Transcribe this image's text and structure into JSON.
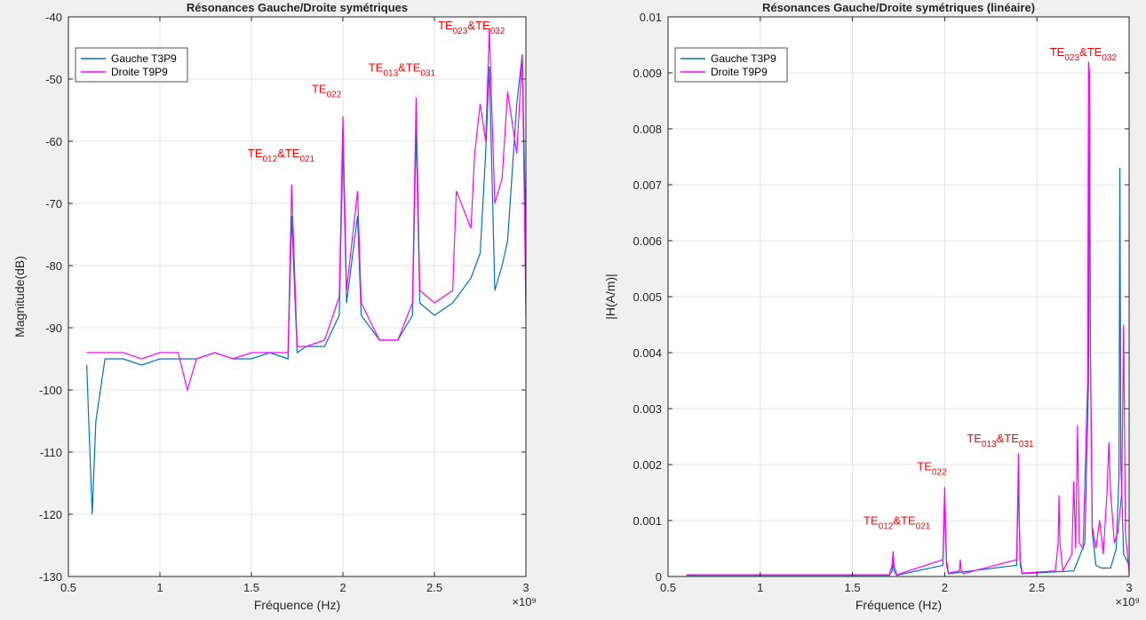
{
  "chart_data": [
    {
      "type": "line",
      "title": "Résonances Gauche/Droite symétriques",
      "xlabel": "Fréquence (Hz)",
      "ylabel": "Magnitude(dB)",
      "x_exponent": "×10⁹",
      "xlim": [
        0.5,
        3
      ],
      "ylim": [
        -130,
        -40
      ],
      "xticks": [
        0.5,
        1,
        1.5,
        2,
        2.5,
        3
      ],
      "xtick_labels": [
        "0.5",
        "1",
        "1.5",
        "2",
        "2.5",
        "3"
      ],
      "yticks": [
        -130,
        -120,
        -110,
        -100,
        -90,
        -80,
        -70,
        -60,
        -50,
        -40
      ],
      "ytick_labels": [
        "-130",
        "-120",
        "-110",
        "-100",
        "-90",
        "-80",
        "-70",
        "-60",
        "-50",
        "-40"
      ],
      "grid": true,
      "legend_position": "top-left",
      "series": [
        {
          "name": "Gauche T3P9",
          "color": "#0072BD",
          "x": [
            0.6,
            0.63,
            0.65,
            0.7,
            0.8,
            0.9,
            1.0,
            1.1,
            1.2,
            1.3,
            1.4,
            1.5,
            1.6,
            1.7,
            1.72,
            1.75,
            1.8,
            1.9,
            1.98,
            2.0,
            2.02,
            2.08,
            2.1,
            2.2,
            2.3,
            2.38,
            2.4,
            2.42,
            2.5,
            2.6,
            2.7,
            2.75,
            2.78,
            2.8,
            2.83,
            2.87,
            2.9,
            2.95,
            2.98,
            3.0
          ],
          "y": [
            -96,
            -120,
            -105,
            -95,
            -95,
            -96,
            -95,
            -95,
            -95,
            -94,
            -95,
            -95,
            -94,
            -95,
            -72,
            -94,
            -93,
            -93,
            -88,
            -60,
            -86,
            -72,
            -88,
            -92,
            -92,
            -88,
            -58,
            -86,
            -88,
            -86,
            -82,
            -78,
            -62,
            -48,
            -84,
            -80,
            -76,
            -54,
            -46,
            -76
          ]
        },
        {
          "name": "Droite T9P9",
          "color": "#FF00FF",
          "x": [
            0.6,
            0.65,
            0.7,
            0.8,
            0.9,
            1.0,
            1.1,
            1.15,
            1.2,
            1.3,
            1.4,
            1.5,
            1.6,
            1.7,
            1.72,
            1.75,
            1.8,
            1.9,
            1.98,
            2.0,
            2.02,
            2.08,
            2.1,
            2.2,
            2.3,
            2.38,
            2.4,
            2.42,
            2.5,
            2.6,
            2.62,
            2.7,
            2.72,
            2.75,
            2.78,
            2.8,
            2.83,
            2.87,
            2.9,
            2.95,
            2.98,
            3.0
          ],
          "y": [
            -94,
            -94,
            -94,
            -94,
            -95,
            -94,
            -94,
            -100,
            -95,
            -94,
            -95,
            -94,
            -94,
            -94,
            -67,
            -93,
            -93,
            -92,
            -85,
            -56,
            -84,
            -68,
            -86,
            -92,
            -92,
            -86,
            -53,
            -84,
            -86,
            -84,
            -68,
            -74,
            -62,
            -54,
            -60,
            -42,
            -70,
            -66,
            -52,
            -62,
            -46,
            -88
          ]
        }
      ],
      "annotations": [
        {
          "base": "TE",
          "sub1": "012",
          "join": "&TE",
          "sub2": "021",
          "x": 1.48,
          "y": -62.6
        },
        {
          "base": "TE",
          "sub1": "022",
          "join": "",
          "sub2": "",
          "x": 1.83,
          "y": -52.2
        },
        {
          "base": "TE",
          "sub1": "013",
          "join": "&TE",
          "sub2": "031",
          "x": 2.14,
          "y": -48.8
        },
        {
          "base": "TE",
          "sub1": "023",
          "join": "&TE",
          "sub2": "032",
          "x": 2.52,
          "y": -42
        }
      ]
    },
    {
      "type": "line",
      "title": "Résonances Gauche/Droite symétriques (linéaire)",
      "xlabel": "Fréquence (Hz)",
      "ylabel": "|H(A/m)|",
      "x_exponent": "×10⁹",
      "xlim": [
        0.5,
        3
      ],
      "ylim": [
        0,
        0.01
      ],
      "xticks": [
        0.5,
        1,
        1.5,
        2,
        2.5,
        3
      ],
      "xtick_labels": [
        "0.5",
        "1",
        "1.5",
        "2",
        "2.5",
        "3"
      ],
      "yticks": [
        0,
        0.001,
        0.002,
        0.003,
        0.004,
        0.005,
        0.006,
        0.007,
        0.008,
        0.009,
        0.01
      ],
      "ytick_labels": [
        "0",
        "0.001",
        "0.002",
        "0.003",
        "0.004",
        "0.005",
        "0.006",
        "0.007",
        "0.008",
        "0.009",
        "0.01"
      ],
      "grid": true,
      "legend_position": "top-left",
      "series": [
        {
          "name": "Gauche T3P9",
          "color": "#0072BD",
          "x": [
            0.6,
            1.0,
            1.5,
            1.7,
            1.715,
            1.72,
            1.725,
            1.74,
            1.99,
            2.0,
            2.005,
            2.01,
            2.02,
            2.39,
            2.4,
            2.405,
            2.41,
            2.42,
            2.7,
            2.76,
            2.78,
            2.785,
            2.79,
            2.8,
            2.82,
            2.85,
            2.9,
            2.93,
            2.945,
            2.95,
            2.955,
            2.97,
            3.0
          ],
          "y": [
            2e-05,
            2e-05,
            2e-05,
            2e-05,
            0.0001,
            0.0003,
            0.0001,
            2e-05,
            0.0002,
            0.0014,
            0.0008,
            0.0002,
            5e-05,
            0.0002,
            0.0018,
            0.0008,
            0.0002,
            5e-05,
            0.0001,
            0.0006,
            0.0035,
            0.0088,
            0.0042,
            0.0008,
            0.0002,
            0.00015,
            0.00015,
            0.0005,
            0.0018,
            0.0073,
            0.002,
            0.0004,
            0.0002
          ]
        },
        {
          "name": "Droite T9P9",
          "color": "#FF00FF",
          "x": [
            0.6,
            1.0,
            1.5,
            1.7,
            1.715,
            1.72,
            1.725,
            1.74,
            1.99,
            2.0,
            2.005,
            2.01,
            2.02,
            2.08,
            2.085,
            2.09,
            2.1,
            2.39,
            2.4,
            2.405,
            2.41,
            2.42,
            2.6,
            2.615,
            2.62,
            2.625,
            2.64,
            2.69,
            2.7,
            2.71,
            2.72,
            2.73,
            2.75,
            2.775,
            2.78,
            2.785,
            2.79,
            2.8,
            2.82,
            2.84,
            2.86,
            2.88,
            2.89,
            2.9,
            2.92,
            2.94,
            2.96,
            2.97,
            2.98,
            3.0
          ],
          "y": [
            3e-05,
            3e-05,
            3e-05,
            3e-05,
            0.0002,
            0.00045,
            0.0002,
            3e-05,
            0.0003,
            0.0016,
            0.0009,
            0.0003,
            6e-05,
            0.0001,
            0.0003,
            0.0001,
            5e-05,
            0.0003,
            0.0022,
            0.0009,
            0.0003,
            6e-05,
            0.0001,
            0.0006,
            0.00145,
            0.0006,
            0.0001,
            0.0004,
            0.0017,
            0.0005,
            0.0027,
            0.0006,
            0.0005,
            0.0035,
            0.0092,
            0.009,
            0.004,
            0.0009,
            0.0005,
            0.001,
            0.0004,
            0.0015,
            0.0024,
            0.0015,
            0.0006,
            0.0008,
            0.0015,
            0.0045,
            0.0008,
            5e-05
          ]
        }
      ],
      "annotations": [
        {
          "base": "TE",
          "sub1": "012",
          "join": "&TE",
          "sub2": "021",
          "x": 1.56,
          "y": 0.00093
        },
        {
          "base": "TE",
          "sub1": "022",
          "join": "",
          "sub2": "",
          "x": 1.85,
          "y": 0.0019
        },
        {
          "base": "TE",
          "sub1": "013",
          "join": "&TE",
          "sub2": "031",
          "x": 2.12,
          "y": 0.0024
        },
        {
          "base": "TE",
          "sub1": "023",
          "join": "&TE",
          "sub2": "032",
          "x": 2.57,
          "y": 0.0093
        }
      ]
    }
  ]
}
